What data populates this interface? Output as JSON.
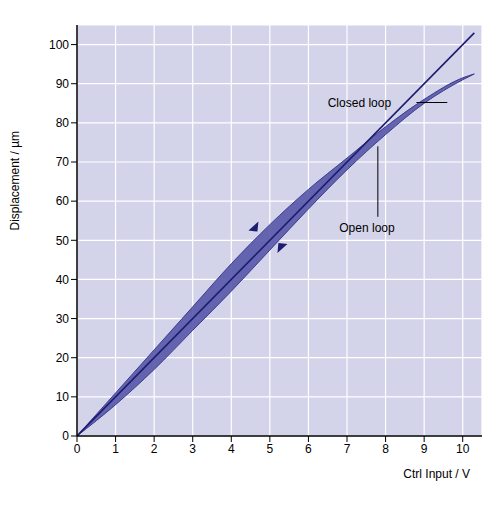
{
  "chart_data": {
    "type": "line",
    "x_label": "Ctrl Input / V",
    "y_label": "Displacement / µm",
    "xlim": [
      0,
      10.5
    ],
    "ylim": [
      0,
      105
    ],
    "xticks": [
      0,
      1,
      2,
      3,
      4,
      5,
      6,
      7,
      8,
      9,
      10
    ],
    "yticks": [
      0,
      10,
      20,
      30,
      40,
      50,
      60,
      70,
      80,
      90,
      100
    ],
    "grid": true,
    "series": [
      {
        "name": "Closed loop",
        "type": "line",
        "color": "#1c1c70",
        "x": [
          0,
          10.3
        ],
        "values": [
          0,
          103
        ]
      },
      {
        "name": "Open loop",
        "type": "area",
        "color": "#5656a8",
        "x": [
          0,
          1,
          2,
          3,
          4,
          5,
          6,
          7,
          8,
          9,
          10,
          10.3
        ],
        "lower": [
          0,
          8,
          17,
          27,
          37,
          47.5,
          58,
          68,
          77,
          85,
          91,
          92.5
        ],
        "upper": [
          0,
          11,
          22,
          33,
          44,
          54,
          63,
          71,
          79,
          86,
          91.5,
          92.5
        ]
      }
    ]
  }
}
